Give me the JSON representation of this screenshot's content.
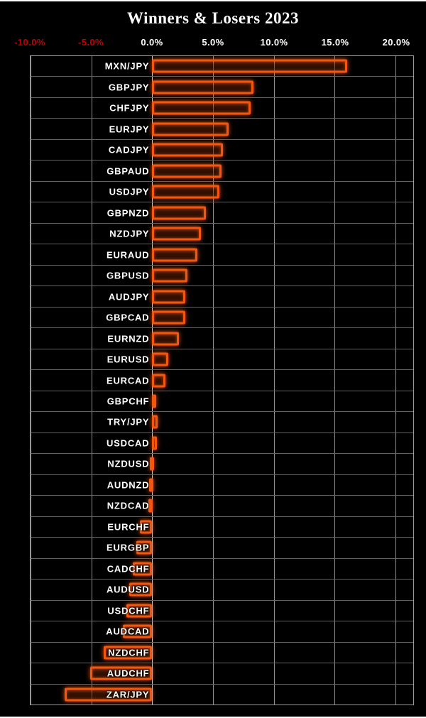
{
  "title": "Winners & Losers 2023",
  "chart_data": {
    "type": "bar",
    "orientation": "horizontal",
    "title": "Winners & Losers 2023",
    "xlabel": "",
    "ylabel": "",
    "xlim": [
      -10,
      21.45
    ],
    "grid": true,
    "legend": false,
    "x_ticks": [
      {
        "label": "-10.0%",
        "value": -10,
        "color": "#c00000"
      },
      {
        "label": "-5.0%",
        "value": -5,
        "color": "#c00000"
      },
      {
        "label": "0.0%",
        "value": 0,
        "color": "#ffffff"
      },
      {
        "label": "5.0%",
        "value": 5,
        "color": "#ffffff"
      },
      {
        "label": "10.0%",
        "value": 10,
        "color": "#ffffff"
      },
      {
        "label": "15.0%",
        "value": 15,
        "color": "#ffffff"
      },
      {
        "label": "20.0%",
        "value": 20,
        "color": "#ffffff"
      }
    ],
    "categories": [
      "MXN/JPY",
      "GBPJPY",
      "CHFJPY",
      "EURJPY",
      "CADJPY",
      "GBPAUD",
      "USDJPY",
      "GBPNZD",
      "NZDJPY",
      "EURAUD",
      "GBPUSD",
      "AUDJPY",
      "GBPCAD",
      "EURNZD",
      "EURUSD",
      "EURCAD",
      "GBPCHF",
      "TRY/JPY",
      "USDCAD",
      "NZDUSD",
      "AUDNZD",
      "NZDCAD",
      "EURCHF",
      "EURGBP",
      "CADCHF",
      "AUDUSD",
      "USDCHF",
      "AUDCAD",
      "NZDCHF",
      "AUDCHF",
      "ZAR/JPY"
    ],
    "values": [
      16.0,
      8.3,
      8.1,
      6.3,
      5.8,
      5.7,
      5.5,
      4.4,
      4.0,
      3.7,
      2.9,
      2.7,
      2.7,
      2.2,
      1.3,
      1.1,
      0.1,
      0.45,
      0.4,
      -0.2,
      -0.25,
      -0.3,
      -1.0,
      -1.3,
      -1.6,
      -1.9,
      -2.1,
      -2.4,
      -4.0,
      -5.1,
      -7.2
    ],
    "colors": {
      "background": "#000000",
      "bar_border": "#f3570f",
      "bar_fill": "rgba(150,48,8,0.45)",
      "label_text": "#ffffff",
      "grid_vertical": "#8f8f8f",
      "grid_horizontal": "#636363",
      "negative_tick_text": "#c00000",
      "positive_tick_text": "#ffffff",
      "title_text": "#ffffff"
    }
  }
}
